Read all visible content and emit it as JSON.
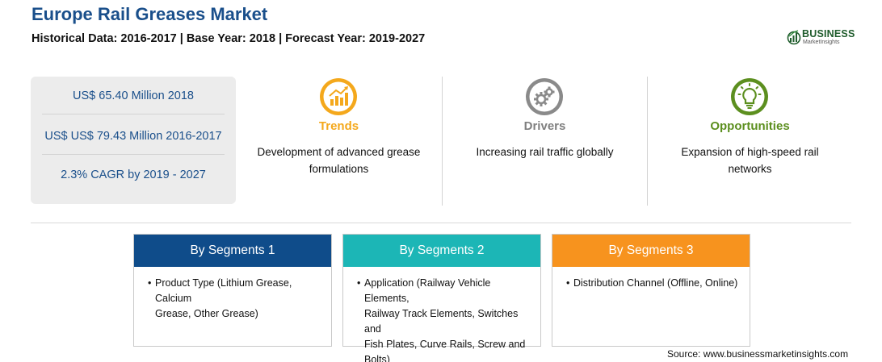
{
  "header": {
    "title": "Europe Rail Greases Market",
    "subtitle": "Historical Data: 2016-2017 | Base Year: 2018 | Forecast Year: 2019-2027"
  },
  "logo": {
    "word": "BUSINESS",
    "sub": "MarketInsights",
    "color": "#1f5c2c"
  },
  "stats": [
    "US$ 65.40 Million 2018",
    "US$ US$ 79.43 Million 2016-2017",
    "2.3% CAGR by 2019 - 2027"
  ],
  "columns": [
    {
      "icon": "trend-chart-icon",
      "heading": "Trends",
      "color": "#f4a81c",
      "desc_line1": "Development of advanced grease",
      "desc_line2": "formulations"
    },
    {
      "icon": "gears-icon",
      "heading": "Drivers",
      "color": "#7f7f7f",
      "desc_line1": "Increasing rail traffic globally",
      "desc_line2": ""
    },
    {
      "icon": "lightbulb-icon",
      "heading": "Opportunities",
      "color": "#5c8f1f",
      "desc_line1": "Expansion of high-speed rail",
      "desc_line2": "networks"
    }
  ],
  "segments": [
    {
      "title": "By Segments 1",
      "color": "#0f4c8a",
      "lines": [
        "Product Type (Lithium Grease, Calcium",
        "Grease, Other Grease)"
      ]
    },
    {
      "title": "By Segments 2",
      "color": "#1cb6b6",
      "lines": [
        "Application (Railway Vehicle Elements,",
        "Railway Track Elements, Switches and",
        "Fish Plates, Curve Rails, Screw and",
        "Bolts)"
      ]
    },
    {
      "title": "By Segments 3",
      "color": "#f7931e",
      "lines": [
        "Distribution Channel (Offline, Online)"
      ]
    }
  ],
  "source": "Source: www.businessmarketinsights.com"
}
